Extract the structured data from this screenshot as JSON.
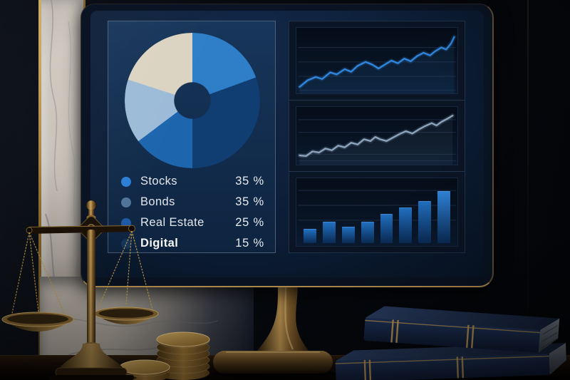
{
  "scene": {
    "objects": [
      "monitor-dashboard",
      "balance-scale",
      "marble-pillar",
      "gold-coin-stacks",
      "law-books",
      "monitor-stand",
      "desk"
    ]
  },
  "colors": {
    "accent_blue": "#2e7fc8",
    "dark_blue_segment": "#113e72",
    "medium_blue_segment": "#1d65ad",
    "steel_blue_segment": "#9cbbd8",
    "cream_segment": "#dcd4c2",
    "screen_navy": "#0d1f39",
    "panel_navy": "#122c4c",
    "legend_text": "#e3e7ec",
    "brass_gold": "#b08d4e",
    "marble": "#c9c3ba",
    "book_navy": "#1e3157"
  },
  "chart_data": [
    {
      "id": "allocation-donut",
      "type": "donut",
      "title": "",
      "legend_position": "below",
      "hole_ratio": 0.53,
      "items": [
        {
          "label": "Stocks",
          "value": 35,
          "value_label": "35 %",
          "color": "#2b7fd4"
        },
        {
          "label": "Bonds",
          "value": 35,
          "value_label": "35 %",
          "color": "#507498"
        },
        {
          "label": "Real Estate",
          "value": 25,
          "value_label": "25 %",
          "color": "#1d5ba8"
        },
        {
          "label": "Digital",
          "value": 15,
          "value_label": "15 %",
          "color": "#16395f"
        }
      ],
      "segments": [
        {
          "name": "bright-blue",
          "color": "#2e7fc8",
          "sweep_deg": 70
        },
        {
          "name": "dark-navy",
          "color": "#113e72",
          "sweep_deg": 110
        },
        {
          "name": "medium-blue",
          "color": "#1d65ad",
          "sweep_deg": 53
        },
        {
          "name": "steel-blue",
          "color": "#9cbbd8",
          "sweep_deg": 55
        },
        {
          "name": "cream",
          "color": "#dcd4c2",
          "sweep_deg": 72
        }
      ]
    },
    {
      "id": "trend-top",
      "type": "line",
      "stroke": "#2f86dc",
      "area_fill": "rgba(47,134,220,0.10)",
      "grid": true,
      "gridlines_y": [
        0.3,
        0.52,
        0.74,
        0.95
      ],
      "x_range": [
        0,
        100
      ],
      "y_range": [
        0,
        100
      ],
      "points": [
        [
          2,
          10
        ],
        [
          7,
          20
        ],
        [
          12,
          25
        ],
        [
          16,
          22
        ],
        [
          21,
          32
        ],
        [
          25,
          29
        ],
        [
          30,
          37
        ],
        [
          34,
          33
        ],
        [
          38,
          42
        ],
        [
          43,
          48
        ],
        [
          47,
          44
        ],
        [
          51,
          38
        ],
        [
          55,
          44
        ],
        [
          59,
          50
        ],
        [
          63,
          46
        ],
        [
          67,
          53
        ],
        [
          71,
          49
        ],
        [
          75,
          57
        ],
        [
          79,
          62
        ],
        [
          83,
          58
        ],
        [
          86,
          64
        ],
        [
          90,
          70
        ],
        [
          93,
          67
        ],
        [
          96,
          76
        ],
        [
          98,
          86
        ]
      ]
    },
    {
      "id": "trend-middle",
      "type": "line",
      "stroke": "#8ca3bc",
      "area_fill": "rgba(140,163,188,0.07)",
      "grid": true,
      "gridlines_y": [
        0.22,
        0.44,
        0.82,
        0.93
      ],
      "x_range": [
        0,
        100
      ],
      "y_range": [
        0,
        100
      ],
      "points": [
        [
          2,
          16
        ],
        [
          6,
          15
        ],
        [
          10,
          23
        ],
        [
          14,
          21
        ],
        [
          18,
          28
        ],
        [
          22,
          25
        ],
        [
          26,
          33
        ],
        [
          30,
          30
        ],
        [
          34,
          38
        ],
        [
          38,
          35
        ],
        [
          42,
          44
        ],
        [
          46,
          41
        ],
        [
          49,
          48
        ],
        [
          52,
          44
        ],
        [
          56,
          41
        ],
        [
          60,
          47
        ],
        [
          64,
          53
        ],
        [
          68,
          58
        ],
        [
          72,
          54
        ],
        [
          76,
          61
        ],
        [
          80,
          67
        ],
        [
          84,
          72
        ],
        [
          87,
          68
        ],
        [
          90,
          74
        ],
        [
          94,
          80
        ],
        [
          97,
          85
        ]
      ]
    },
    {
      "id": "volume-bars",
      "type": "bar",
      "grid": true,
      "gridlines_y": [
        0.18,
        0.4,
        0.62
      ],
      "ylim": [
        0,
        100
      ],
      "values": [
        24,
        35,
        27,
        35,
        48,
        59,
        70,
        86
      ],
      "bar_color_top": "#2273c6",
      "bar_color_bottom": "#0a2c58",
      "last_bar_color_top": "#3188e0"
    }
  ]
}
